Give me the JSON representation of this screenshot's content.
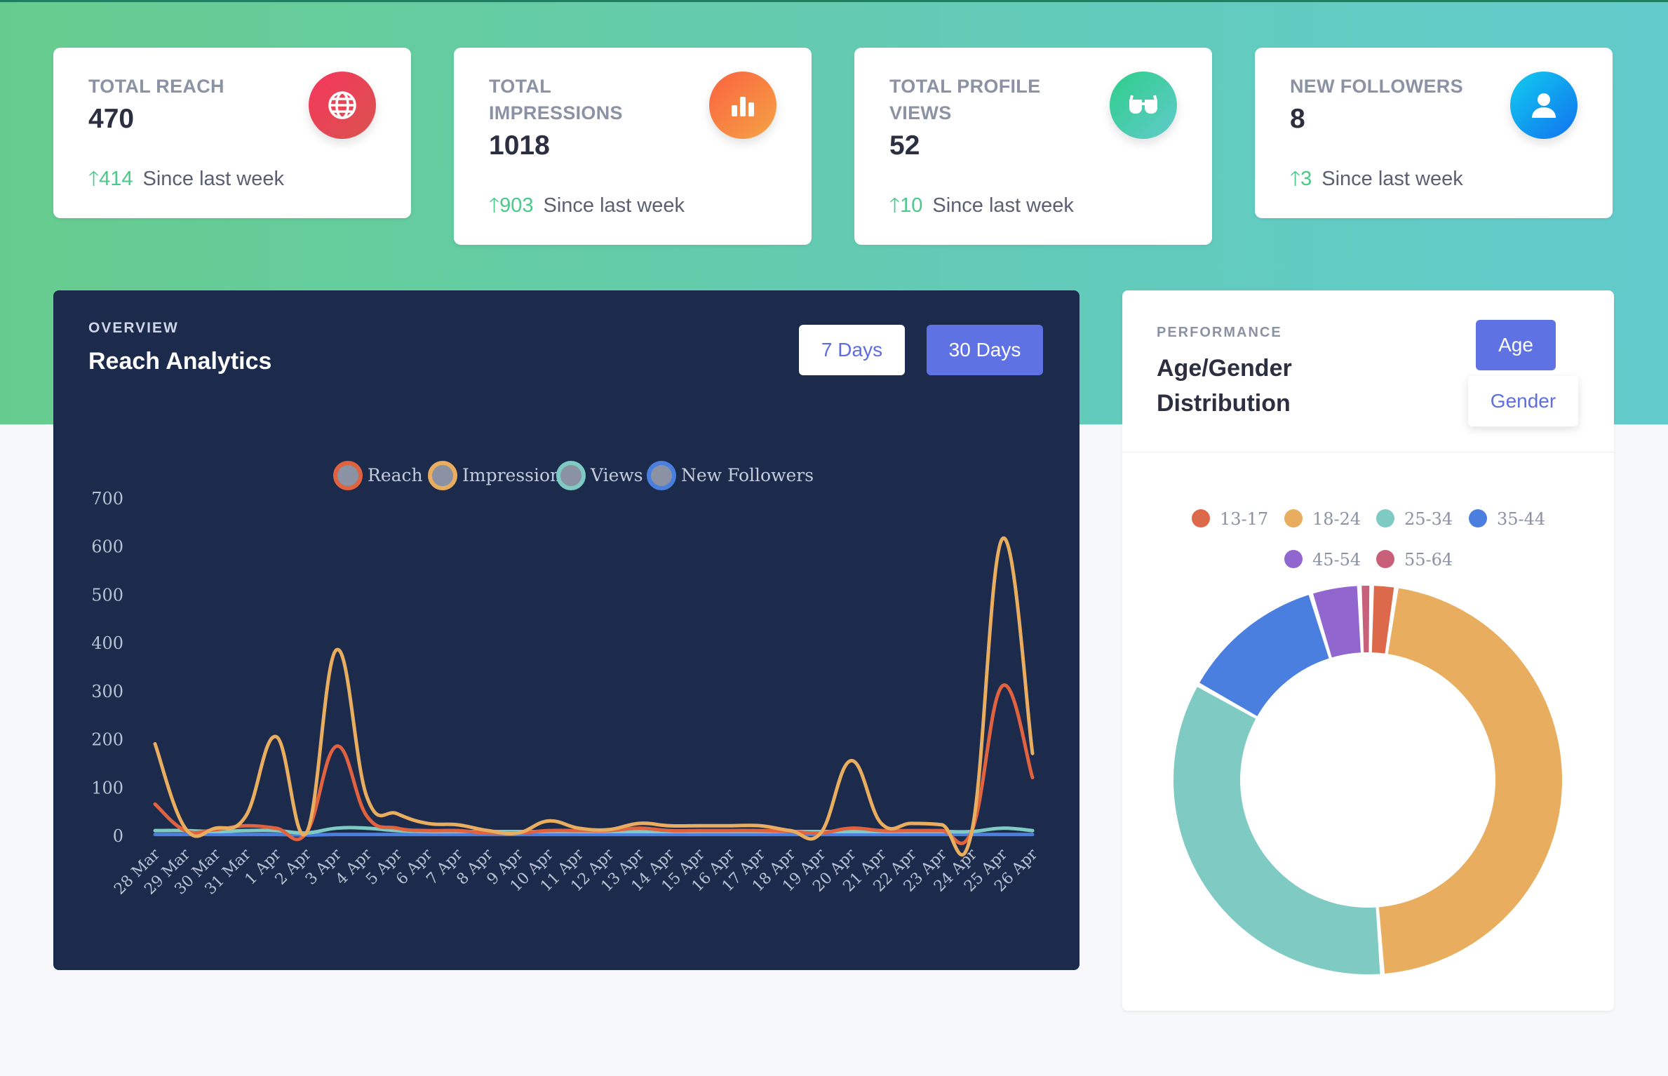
{
  "stats": [
    {
      "title_lines": [
        "TOTAL REACH"
      ],
      "value": "470",
      "delta": "414",
      "since": "Since last week",
      "icon": "globe-icon",
      "gradient": [
        "#f5365c",
        "#d9534f"
      ]
    },
    {
      "title_lines": [
        "TOTAL",
        "IMPRESSIONS"
      ],
      "value": "1018",
      "delta": "903",
      "since": "Since last week",
      "icon": "bar-chart-icon",
      "gradient": [
        "#fb6340",
        "#f5a445"
      ]
    },
    {
      "title_lines": [
        "TOTAL PROFILE",
        "VIEWS"
      ],
      "value": "52",
      "delta": "10",
      "since": "Since last week",
      "icon": "glasses-icon",
      "gradient": [
        "#2dce89",
        "#62cbcc"
      ]
    },
    {
      "title_lines": [
        "NEW FOLLOWERS"
      ],
      "value": "8",
      "delta": "3",
      "since": "Since last week",
      "icon": "user-icon",
      "gradient": [
        "#11cdef",
        "#1171ef"
      ]
    }
  ],
  "overview": {
    "kicker": "OVERVIEW",
    "title": "Reach Analytics",
    "btn_7": "7 Days",
    "btn_30": "30 Days"
  },
  "performance": {
    "kicker": "PERFORMANCE",
    "title": "Age/Gender Distribution",
    "btn_age": "Age",
    "btn_gender": "Gender"
  },
  "colors": {
    "reach": "#e0623f",
    "impressions": "#e8ad5f",
    "views": "#7fcbc3",
    "new_followers": "#4a7fe0",
    "age_13_17": "#dc6a4a",
    "age_18_24": "#e8ad5f",
    "age_25_34": "#7fcbc3",
    "age_35_44": "#4a7fe0",
    "age_45_54": "#9166cf",
    "age_55_64": "#c9607a"
  },
  "chart_data": [
    {
      "type": "line",
      "categories": [
        "28 Mar",
        "29 Mar",
        "30 Mar",
        "31 Mar",
        "1 Apr",
        "2 Apr",
        "3 Apr",
        "4 Apr",
        "5 Apr",
        "6 Apr",
        "7 Apr",
        "8 Apr",
        "9 Apr",
        "10 Apr",
        "11 Apr",
        "12 Apr",
        "13 Apr",
        "14 Apr",
        "15 Apr",
        "16 Apr",
        "17 Apr",
        "18 Apr",
        "19 Apr",
        "20 Apr",
        "21 Apr",
        "22 Apr",
        "23 Apr",
        "24 Apr",
        "25 Apr",
        "26 Apr"
      ],
      "ylim": [
        0,
        700
      ],
      "yticks": [
        0,
        100,
        200,
        300,
        400,
        500,
        600,
        700
      ],
      "legend": "top",
      "series": [
        {
          "name": "Reach",
          "color_key": "reach",
          "values": [
            65,
            10,
            12,
            20,
            15,
            5,
            185,
            40,
            15,
            10,
            10,
            5,
            5,
            10,
            10,
            10,
            15,
            10,
            10,
            10,
            10,
            8,
            5,
            15,
            10,
            10,
            10,
            10,
            310,
            120
          ]
        },
        {
          "name": "Impressions",
          "color_key": "impressions",
          "values": [
            190,
            15,
            15,
            40,
            205,
            5,
            385,
            80,
            45,
            25,
            22,
            10,
            5,
            30,
            15,
            12,
            25,
            20,
            20,
            20,
            20,
            10,
            5,
            155,
            25,
            25,
            22,
            10,
            615,
            170
          ]
        },
        {
          "name": "Views",
          "color_key": "views",
          "values": [
            10,
            10,
            8,
            10,
            10,
            5,
            15,
            15,
            10,
            8,
            8,
            8,
            8,
            8,
            8,
            8,
            8,
            8,
            8,
            8,
            8,
            8,
            8,
            8,
            8,
            8,
            8,
            8,
            15,
            10
          ]
        },
        {
          "name": "New Followers",
          "color_key": "new_followers",
          "values": [
            2,
            2,
            2,
            2,
            2,
            1,
            2,
            2,
            2,
            2,
            2,
            2,
            2,
            2,
            2,
            2,
            2,
            2,
            2,
            2,
            2,
            2,
            2,
            2,
            2,
            2,
            2,
            2,
            2,
            2
          ]
        }
      ]
    },
    {
      "type": "pie",
      "donut": true,
      "legend": "top",
      "categories": [
        "13-17",
        "18-24",
        "25-34",
        "35-44",
        "45-54",
        "55-64"
      ],
      "values": [
        2,
        46,
        34,
        12,
        4,
        1
      ],
      "color_keys": [
        "age_13_17",
        "age_18_24",
        "age_25_34",
        "age_35_44",
        "age_45_54",
        "age_55_64"
      ]
    }
  ]
}
